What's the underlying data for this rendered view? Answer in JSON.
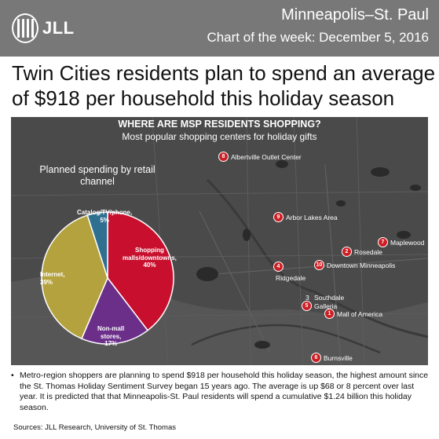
{
  "header": {
    "logo_text": "JLL",
    "city": "Minneapolis–St. Paul",
    "chart_of_week": "Chart of the week: December 5, 2016"
  },
  "headline": "Twin Cities residents plan to spend an average of $918 per household this holiday season",
  "map": {
    "title": "WHERE ARE MSP RESIDENTS SHOPPING?",
    "subtitle": "Most popular shopping centers for holiday gifts",
    "places": [
      {
        "rank": "1",
        "name": "Mall of America"
      },
      {
        "rank": "2",
        "name": "Rosedale"
      },
      {
        "rank": "3",
        "name": "Southdale"
      },
      {
        "rank": "4",
        "name": "Ridgedale"
      },
      {
        "rank": "5",
        "name": "Galleria"
      },
      {
        "rank": "6",
        "name": "Burnsville"
      },
      {
        "rank": "7",
        "name": "Maplewood"
      },
      {
        "rank": "8",
        "name": "Albertville Outlet Center"
      },
      {
        "rank": "9",
        "name": "Arbor Lakes Area"
      },
      {
        "rank": "10",
        "name": "Downtown Minneapolis"
      }
    ]
  },
  "chart_data": {
    "type": "pie",
    "title": "Planned spending by retail channel",
    "unit": "%",
    "slices": [
      {
        "label_line1": "Shopping",
        "label_line2": "malls/downtowns,",
        "label_line3": "40%",
        "value": 40,
        "color": "#c8102e"
      },
      {
        "label_line1": "Non-mall",
        "label_line2": "stores,",
        "label_line3": "17%",
        "value": 17,
        "color": "#6b2f8a"
      },
      {
        "label_line1": "Internet,",
        "label_line2": "39%",
        "label_line3": "",
        "value": 39,
        "color": "#b3a23d"
      },
      {
        "label_line1": "Catalog/TV/phone,",
        "label_line2": "5%",
        "label_line3": "",
        "value": 5,
        "color": "#2f6f90"
      }
    ]
  },
  "footer": {
    "bullet": "•",
    "text": "Metro-region shoppers are planning to spend $918 per household this holiday season, the highest amount since the St. Thomas Holiday Sentiment Survey began 15 years ago. The average is up $68 or 8 percent over last year. It is predicted that that Minneapolis-St. Paul residents will spend a cumulative $1.24 billion this holiday season.",
    "sources": "Sources: JLL Research, University of St. Thomas"
  },
  "colors": {
    "header": "#787878",
    "map_background": "#4a4a4a",
    "marker": "#cc1f25"
  }
}
